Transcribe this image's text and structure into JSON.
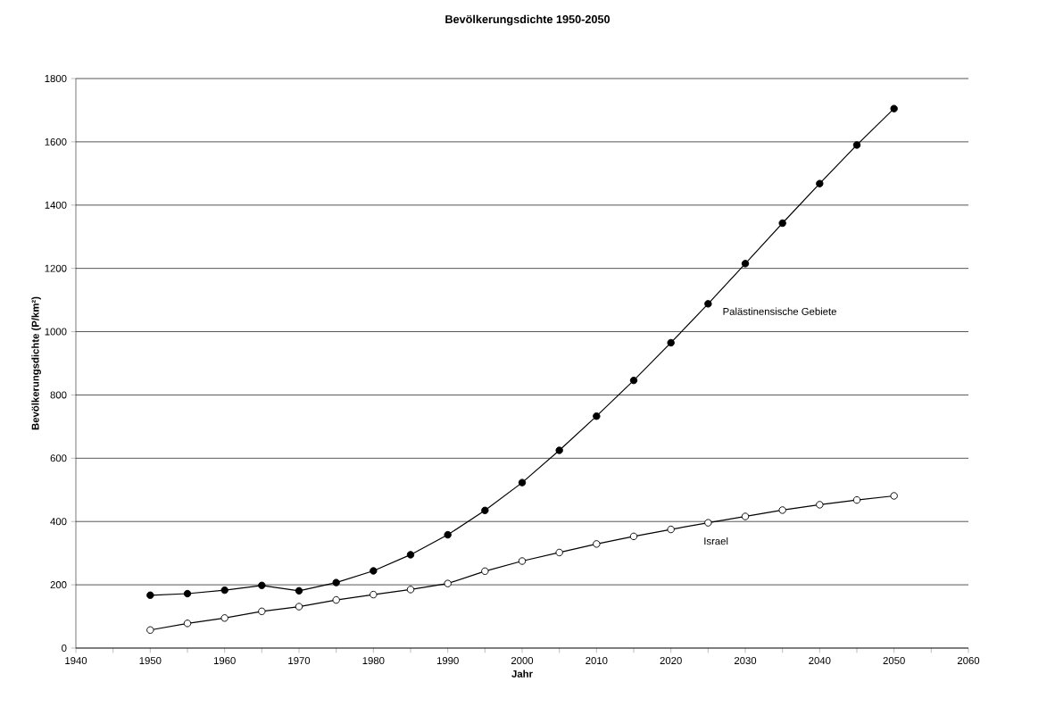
{
  "chart_data": {
    "type": "line",
    "title": "Bevölkerungsdichte 1950-2050",
    "xlabel": "Jahr",
    "ylabel": "Bevölkerungsdichte (P/km²)",
    "x": [
      1950,
      1955,
      1960,
      1965,
      1970,
      1975,
      1980,
      1985,
      1990,
      1995,
      2000,
      2005,
      2010,
      2015,
      2020,
      2025,
      2030,
      2035,
      2040,
      2045,
      2050
    ],
    "series": [
      {
        "name": "Palästinensische Gebiete",
        "color": "#000000",
        "values": [
          167,
          172,
          183,
          198,
          181,
          207,
          244,
          295,
          358,
          435,
          523,
          625,
          733,
          846,
          965,
          1088,
          1215,
          1343,
          1468,
          1590,
          1705
        ]
      },
      {
        "name": "Israel",
        "color": "#000000",
        "values": [
          57,
          78,
          95,
          116,
          131,
          152,
          169,
          185,
          204,
          243,
          275,
          302,
          329,
          353,
          375,
          396,
          416,
          436,
          453,
          468,
          481
        ]
      }
    ],
    "xlim": [
      1940,
      2060
    ],
    "xticks": [
      1940,
      1950,
      1960,
      1970,
      1980,
      1990,
      2000,
      2010,
      2020,
      2030,
      2040,
      2050,
      2060
    ],
    "ylim": [
      0,
      1800
    ],
    "yticks": [
      0,
      200,
      400,
      600,
      800,
      1000,
      1200,
      1400,
      1600,
      1800
    ],
    "grid": "y",
    "legend": false,
    "marker": "circle",
    "line_style": "solid"
  }
}
